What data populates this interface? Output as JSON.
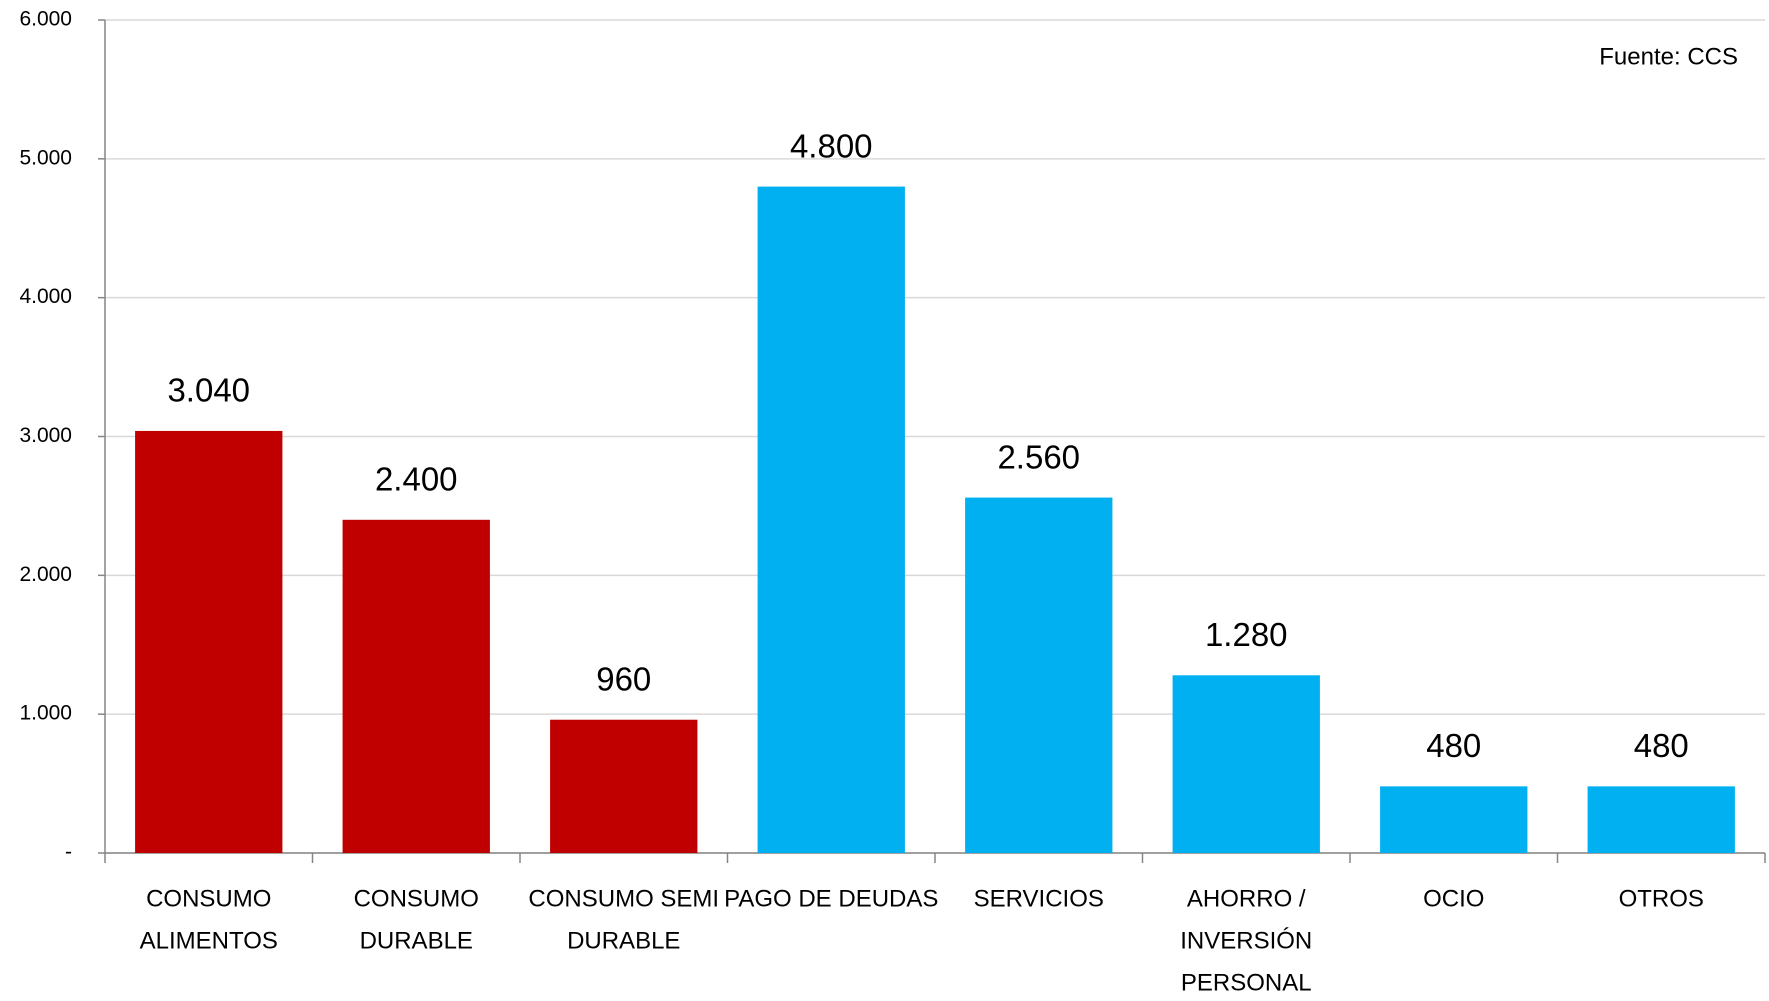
{
  "chart_data": {
    "type": "bar",
    "annotation": "Fuente: CCS",
    "categories": [
      [
        "CONSUMO",
        "ALIMENTOS"
      ],
      [
        "CONSUMO",
        "DURABLE"
      ],
      [
        "CONSUMO SEMI",
        "DURABLE"
      ],
      [
        "PAGO DE DEUDAS"
      ],
      [
        "SERVICIOS"
      ],
      [
        "AHORRO /",
        "INVERSIÓN",
        "PERSONAL"
      ],
      [
        "OCIO"
      ],
      [
        "OTROS"
      ]
    ],
    "values": [
      3040,
      2400,
      960,
      4800,
      2560,
      1280,
      480,
      480
    ],
    "value_labels": [
      "3.040",
      "2.400",
      "960",
      "4.800",
      "2.560",
      "1.280",
      "480",
      "480"
    ],
    "colors": [
      "#c00000",
      "#c00000",
      "#c00000",
      "#00b0f0",
      "#00b0f0",
      "#00b0f0",
      "#00b0f0",
      "#00b0f0"
    ],
    "ylim": [
      0,
      6000
    ],
    "yticks": [
      {
        "value": 0,
        "label": "-"
      },
      {
        "value": 1000,
        "label": "1.000"
      },
      {
        "value": 2000,
        "label": "2.000"
      },
      {
        "value": 3000,
        "label": "3.000"
      },
      {
        "value": 4000,
        "label": "4.000"
      },
      {
        "value": 5000,
        "label": "5.000"
      },
      {
        "value": 6000,
        "label": "6.000"
      }
    ],
    "grid": true
  }
}
